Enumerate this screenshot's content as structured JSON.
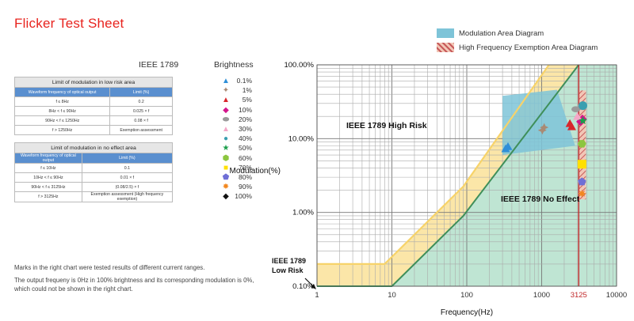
{
  "page": {
    "title": "Flicker Test Sheet"
  },
  "left": {
    "ieee_heading": "IEEE 1789",
    "brightness_heading": "Brightness",
    "table_low_risk": {
      "caption": "Limit of modulation in low risk area",
      "headers": [
        "Waveform frequency of optical output",
        "Limit (%)"
      ],
      "rows": [
        [
          "f ≤ 8Hz",
          "0.2"
        ],
        [
          "8Hz < f ≤ 90Hz",
          "0.025 × f"
        ],
        [
          "90Hz < f ≤ 1250Hz",
          "0.08 × f"
        ],
        [
          "f > 1250Hz",
          "Exemption assessment"
        ]
      ]
    },
    "table_no_effect": {
      "caption": "Limit of modulation in no effect area",
      "headers": [
        "Waveform frequency of optical output",
        "Limit (%)"
      ],
      "rows": [
        [
          "f ≤ 10Hz",
          "0.1"
        ],
        [
          "10Hz < f ≤ 90Hz",
          "0.01 × f"
        ],
        [
          "90Hz < f ≤ 3125Hz",
          "(0.08/2.5) × f"
        ],
        [
          "f > 3125Hz",
          "Exemption assessment (High frequency exemption)"
        ]
      ]
    },
    "brightness_items": [
      {
        "label": "0.1%",
        "color": "#2f8fd8",
        "icon": "triangle"
      },
      {
        "label": "1%",
        "color": "#a98a74",
        "icon": "four-point-star"
      },
      {
        "label": "5%",
        "color": "#d8262c",
        "icon": "triangle"
      },
      {
        "label": "10%",
        "color": "#d4158c",
        "icon": "diamond"
      },
      {
        "label": "20%",
        "color": "#9a9a9a",
        "icon": "ellipse"
      },
      {
        "label": "30%",
        "color": "#f4a7c7",
        "icon": "triangle"
      },
      {
        "label": "40%",
        "color": "#3a9fb0",
        "icon": "circle"
      },
      {
        "label": "50%",
        "color": "#1a9e4a",
        "icon": "star"
      },
      {
        "label": "60%",
        "color": "#8cc63f",
        "icon": "hexagon"
      },
      {
        "label": "70%",
        "color": "#ffe000",
        "icon": "square"
      },
      {
        "label": "80%",
        "color": "#6f6fd6",
        "icon": "pentagon"
      },
      {
        "label": "90%",
        "color": "#f2871f",
        "icon": "burst"
      },
      {
        "label": "100%",
        "color": "#111111",
        "icon": "diamond"
      }
    ],
    "notes": [
      "Marks in the right chart were tested results of different current ranges.",
      "The output frequeny is 0Hz in 100% brightness and its corresponding modulation is 0%, which could not be shown in the right chart."
    ]
  },
  "legend": [
    {
      "label": "Modulation Area Diagram",
      "color": "#7ec4d8"
    },
    {
      "label": "High Frequency Exemption Area Diagram",
      "color": "#c75a5a"
    }
  ],
  "chart_data": {
    "type": "scatter",
    "title": "",
    "xlabel": "Frequency(Hz)",
    "ylabel": "Modulation(%)",
    "x_scale": "log",
    "y_scale": "log",
    "xlim": [
      1,
      10000
    ],
    "ylim": [
      0.1,
      100
    ],
    "grid": true,
    "x_ticks": [
      1,
      10,
      100,
      1000,
      3125,
      10000
    ],
    "x_tick_labels": [
      "1",
      "10",
      "100",
      "1000",
      "3125",
      "10000"
    ],
    "y_ticks": [
      0.1,
      1,
      10,
      100
    ],
    "y_tick_labels": [
      "0.10%",
      "1.00%",
      "10.00%",
      "100.00%"
    ],
    "regions": [
      {
        "label": "IEEE 1789 High Risk",
        "color": "#fbe6a8"
      },
      {
        "label": "IEEE 1789 No Effect",
        "color": "#bfe5d3"
      },
      {
        "label": "IEEE 1789 Low Risk",
        "color": "#fbe6a8"
      }
    ],
    "low_risk_limit": [
      [
        1,
        0.2
      ],
      [
        8,
        0.2
      ],
      [
        90,
        2.25
      ],
      [
        1250,
        100
      ]
    ],
    "no_effect_limit": [
      [
        1,
        0.1
      ],
      [
        10,
        0.1
      ],
      [
        90,
        0.9
      ],
      [
        3125,
        100
      ]
    ],
    "modulation_area": [
      [
        300,
        6
      ],
      [
        300,
        38
      ],
      [
        1600,
        46
      ],
      [
        2800,
        8
      ]
    ],
    "exemption_area": {
      "x_range": [
        3125,
        3900
      ],
      "y_range": [
        1.5,
        45
      ]
    },
    "marker_line_x": 3125,
    "points": [
      {
        "x": 330,
        "y": 7.3,
        "series": "0.1%"
      },
      {
        "x": 355,
        "y": 7.8,
        "series": "0.1%"
      },
      {
        "x": 1020,
        "y": 13,
        "series": "1%"
      },
      {
        "x": 1080,
        "y": 14.2,
        "series": "1%"
      },
      {
        "x": 2380,
        "y": 16,
        "series": "5%"
      },
      {
        "x": 2520,
        "y": 14.5,
        "series": "5%"
      },
      {
        "x": 3300,
        "y": 17,
        "series": "10%"
      },
      {
        "x": 3500,
        "y": 18.5,
        "series": "10%"
      },
      {
        "x": 2850,
        "y": 25,
        "series": "20%"
      },
      {
        "x": 3450,
        "y": 27,
        "series": "20%"
      },
      {
        "x": 3000,
        "y": 20,
        "series": "30%"
      },
      {
        "x": 3550,
        "y": 28,
        "series": "40%"
      },
      {
        "x": 3550,
        "y": 17.5,
        "series": "50%"
      },
      {
        "x": 3450,
        "y": 8.5,
        "series": "60%"
      },
      {
        "x": 3450,
        "y": 4.5,
        "series": "70%"
      },
      {
        "x": 3450,
        "y": 2.6,
        "series": "80%"
      },
      {
        "x": 3450,
        "y": 1.8,
        "series": "90%"
      }
    ]
  }
}
